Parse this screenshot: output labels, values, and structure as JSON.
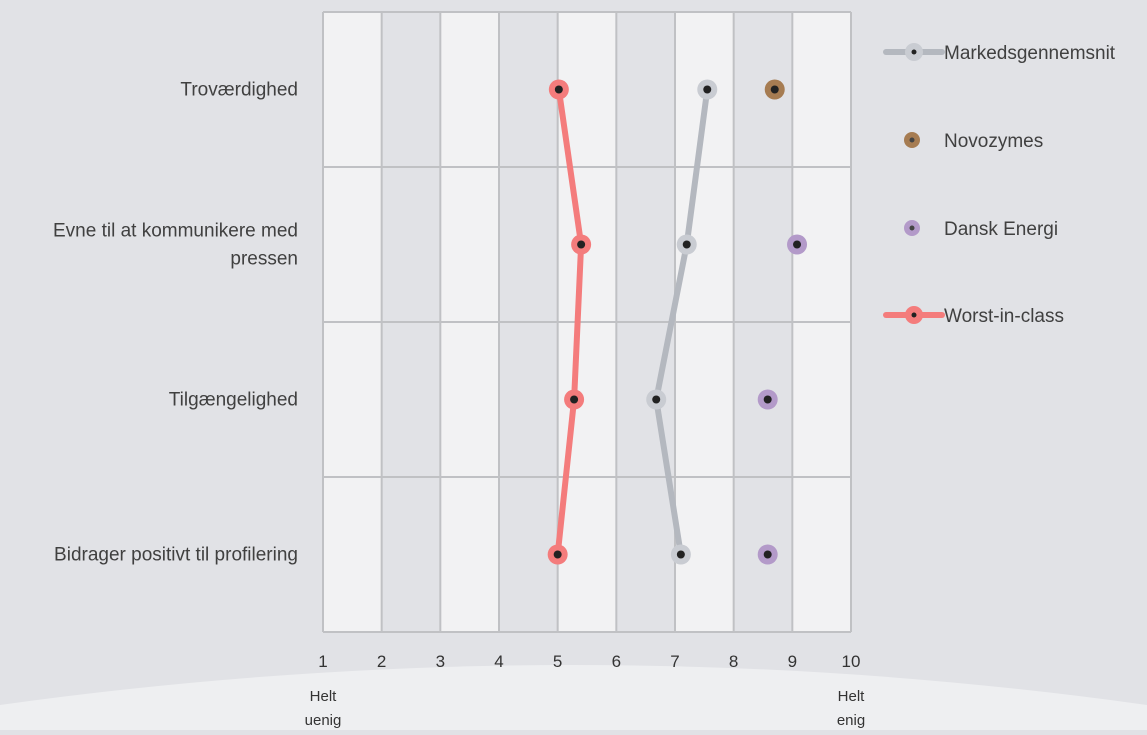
{
  "chart_data": {
    "type": "line",
    "orientation": "horizontal-dot-plot",
    "categories": [
      "Troværdighed",
      "Evne til at kommunikere med pressen",
      "Tilgængelighed",
      "Bidrager positivt til profilering"
    ],
    "category_lines": [
      [
        "Troværdighed"
      ],
      [
        "Evne til at kommunikere med",
        "pressen"
      ],
      [
        "Tilgængelighed"
      ],
      [
        "Bidrager positivt til profilering"
      ]
    ],
    "series": [
      {
        "name": "Markedsgennemsnit",
        "values": [
          7.55,
          7.2,
          6.68,
          7.1
        ],
        "line": true,
        "color": "#b4b8bf",
        "marker": "#c9ccd2"
      },
      {
        "name": "Novozymes",
        "values": [
          8.7,
          null,
          null,
          null
        ],
        "line": false,
        "color": "#8c6a43",
        "marker": "#a67c52"
      },
      {
        "name": "Dansk Energi",
        "values": [
          null,
          9.08,
          8.58,
          8.58
        ],
        "line": false,
        "color": "#b39ac9",
        "marker": "#b39ac9"
      },
      {
        "name": "Worst-in-class",
        "values": [
          5.02,
          5.4,
          5.28,
          5.0
        ],
        "line": true,
        "color": "#f47c7c",
        "marker": "#f47c7c"
      }
    ],
    "xlim": [
      1,
      10
    ],
    "xticks": [
      1,
      2,
      3,
      4,
      5,
      6,
      7,
      8,
      9,
      10
    ],
    "x_end_labels": {
      "left": [
        "Helt",
        "uenig"
      ],
      "right": [
        "Helt",
        "enig"
      ]
    },
    "legend_position": "right",
    "grid": true
  }
}
